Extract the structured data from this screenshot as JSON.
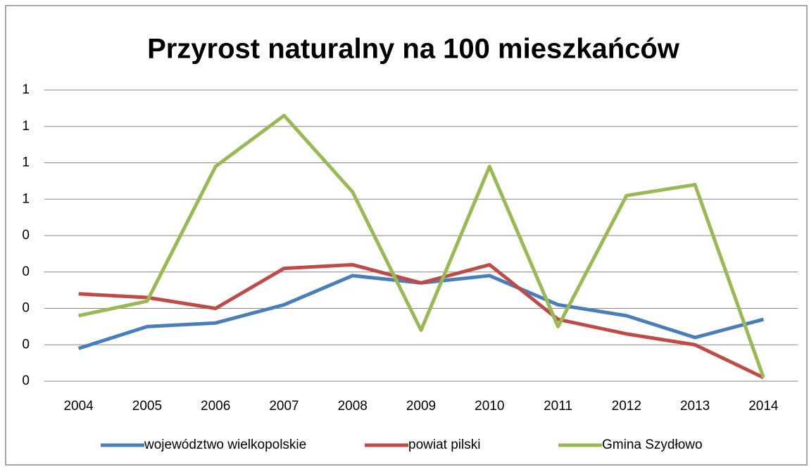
{
  "chart_data": {
    "type": "line",
    "title": "Przyrost naturalny na 100 mieszkańców",
    "categories": [
      "2004",
      "2005",
      "2006",
      "2007",
      "2008",
      "2009",
      "2010",
      "2011",
      "2012",
      "2013",
      "2014"
    ],
    "series": [
      {
        "name": "województwo wielkopolskie",
        "color": "#4a7ebb",
        "values": [
          0.09,
          0.15,
          0.16,
          0.21,
          0.29,
          0.27,
          0.29,
          0.21,
          0.18,
          0.12,
          0.17
        ]
      },
      {
        "name": "powiat pilski",
        "color": "#be4b48",
        "values": [
          0.24,
          0.23,
          0.2,
          0.31,
          0.32,
          0.27,
          0.32,
          0.17,
          0.13,
          0.1,
          0.01
        ]
      },
      {
        "name": "Gmina Szydłowo",
        "color": "#98b954",
        "values": [
          0.18,
          0.22,
          0.59,
          0.73,
          0.52,
          0.14,
          0.59,
          0.15,
          0.51,
          0.54,
          0.01
        ]
      }
    ],
    "ylim": [
      0,
      0.8
    ],
    "yticks": [
      {
        "value": 0,
        "label": "0"
      },
      {
        "value": 0.1,
        "label": "0"
      },
      {
        "value": 0.2,
        "label": "0"
      },
      {
        "value": 0.3,
        "label": "0"
      },
      {
        "value": 0.4,
        "label": "0"
      },
      {
        "value": 0.5,
        "label": "1"
      },
      {
        "value": 0.6,
        "label": "1"
      },
      {
        "value": 0.7,
        "label": "1"
      },
      {
        "value": 0.8,
        "label": "1"
      }
    ],
    "grid": true,
    "legend": "bottom"
  }
}
